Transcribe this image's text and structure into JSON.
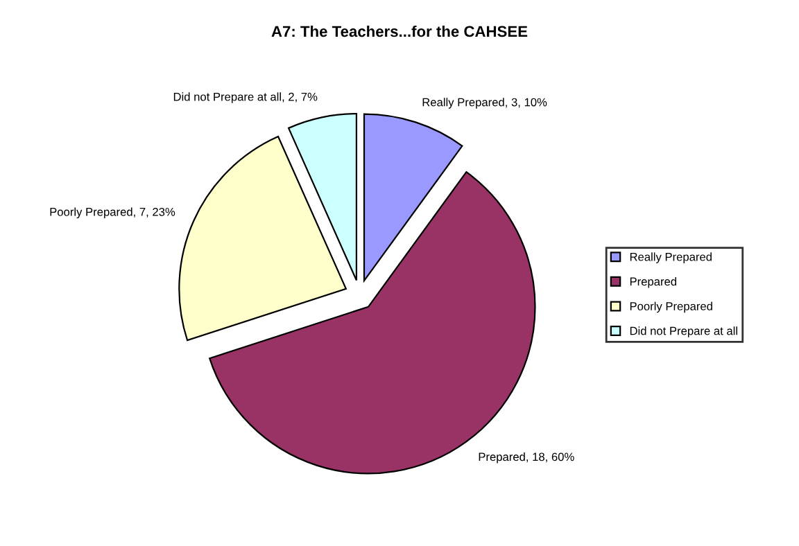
{
  "chart_data": {
    "type": "pie",
    "title": "A7: The Teachers...for the CAHSEE",
    "categories": [
      "Really Prepared",
      "Prepared",
      "Poorly Prepared",
      "Did not Prepare at all"
    ],
    "values": [
      3,
      18,
      7,
      2
    ],
    "colors": [
      "#9999ff",
      "#993366",
      "#ffffcc",
      "#ccffff"
    ],
    "value_labels": [
      "Really Prepared, 3, 10%",
      "Prepared, 18, 60%",
      "Poorly Prepared, 7, 23%",
      "Did not Prepare at all, 2, 7%"
    ],
    "legend": "right"
  }
}
